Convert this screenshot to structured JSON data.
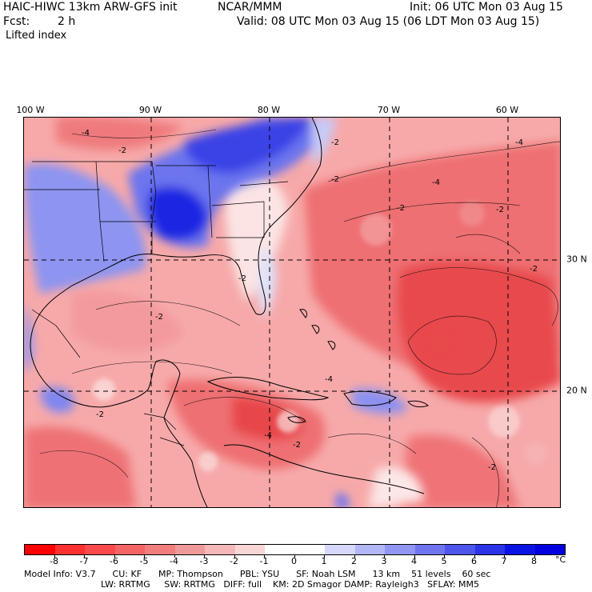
{
  "header": {
    "model": "HAIC-HIWC 13km ARW-GFS init",
    "org": "NCAR/MMM",
    "init": "Init: 06 UTC Mon 03 Aug 15",
    "fcst_label": "Fcst:",
    "fcst_value": "2 h",
    "valid": "Valid: 08 UTC Mon 03 Aug 15 (06 LDT Mon 03 Aug 15)",
    "field": "Lifted index"
  },
  "map": {
    "lon_labels": [
      "100 W",
      "90 W",
      "80 W",
      "70 W",
      "60 W"
    ],
    "lat_labels": [
      "30 N",
      "20 N"
    ],
    "contour_labels": [
      "-4",
      "-2",
      "-2",
      "-4",
      "-2",
      "-2",
      "-4",
      "-2",
      "-2",
      "-2",
      "-4",
      "-2",
      "-2",
      "-4",
      "-2",
      "-2"
    ],
    "colors": {
      "deep_red": "#e5393d",
      "mid_red": "#f0767a",
      "light_red": "#f8b2b3",
      "pale": "#fde3e3",
      "light_blue": "#b9c0f6",
      "mid_blue": "#6b75ef",
      "deep_blue": "#1a22e2"
    }
  },
  "colorbar": {
    "ticks": [
      "-8",
      "-7",
      "-6",
      "-5",
      "-4",
      "-3",
      "-2",
      "-1",
      "0",
      "1",
      "2",
      "3",
      "4",
      "5",
      "6",
      "7",
      "8"
    ],
    "unit": "°C",
    "colors": [
      "#ff0000",
      "#fc3030",
      "#f84a4a",
      "#f56464",
      "#f27d7d",
      "#ef9a9a",
      "#f4b8b8",
      "#f9d6d6",
      "#ffffff",
      "#ffffff",
      "#d6d8fb",
      "#b3b7f7",
      "#9196f3",
      "#6f75ef",
      "#4d55eb",
      "#2b34e7",
      "#0913e3",
      "#0000e0"
    ]
  },
  "footer": {
    "line1": "Model Info: V3.7      CU: KF      MP: Thompson      PBL: YSU      SF: Noah LSM      13 km    51 levels    60 sec",
    "line2": "LW: RRTMG     SW: RRTMG   DIFF: full    KM: 2D Smagor DAMP: Rayleigh3   SFLAY: MM5"
  }
}
